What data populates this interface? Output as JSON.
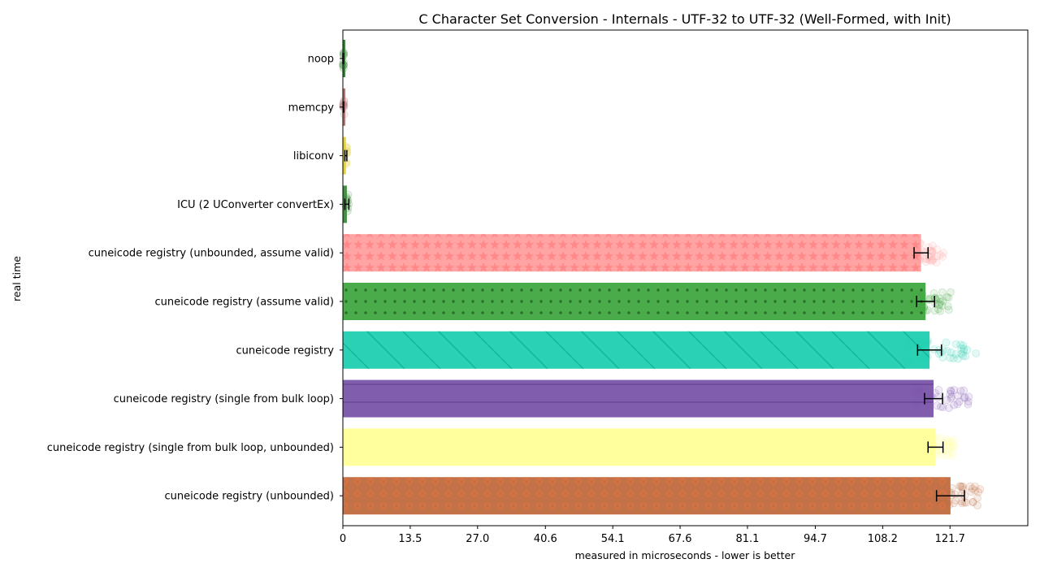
{
  "chart_data": {
    "type": "bar",
    "orientation": "horizontal",
    "title": "C Character Set Conversion - Internals - UTF-32 to UTF-32 (Well-Formed, with Init)",
    "xlabel": "measured in microseconds - lower is better",
    "ylabel": "real time",
    "xlim": [
      0,
      138
    ],
    "xticks": [
      "0",
      "13.5",
      "27.0",
      "40.6",
      "54.1",
      "67.6",
      "81.1",
      "94.7",
      "108.2",
      "121.7"
    ],
    "grid": false,
    "legend": "none",
    "categories": [
      "noop",
      "memcpy",
      "libiconv",
      "ICU (2 UConverter convertEx)",
      "cuneicode registry (unbounded, assume valid)",
      "cuneicode registry (assume valid)",
      "cuneicode registry",
      "cuneicode registry (single from bulk loop)",
      "cuneicode registry (single from bulk loop, unbounded)",
      "cuneicode registry (unbounded)"
    ],
    "values": [
      0.05,
      0.1,
      0.6,
      0.8,
      115.9,
      116.8,
      117.6,
      118.4,
      118.8,
      121.8
    ],
    "error": [
      0.05,
      0.05,
      0.2,
      0.4,
      1.4,
      1.8,
      2.4,
      1.8,
      1.5,
      2.8
    ],
    "point_spread": [
      0.3,
      0.3,
      0.6,
      0.8,
      7,
      8,
      15,
      11,
      6,
      10
    ],
    "colors": [
      "#2e7d32",
      "#b07070",
      "#e0d030",
      "#3a8a3a",
      "#ff9e9e",
      "#3fa63f",
      "#1fcfb0",
      "#7a54aa",
      "#ffff99",
      "#c06a3e"
    ],
    "patterns": [
      "none",
      "none",
      "none",
      "none",
      "stars",
      "dots",
      "diagonal",
      "horizontal",
      "none",
      "circles"
    ]
  }
}
